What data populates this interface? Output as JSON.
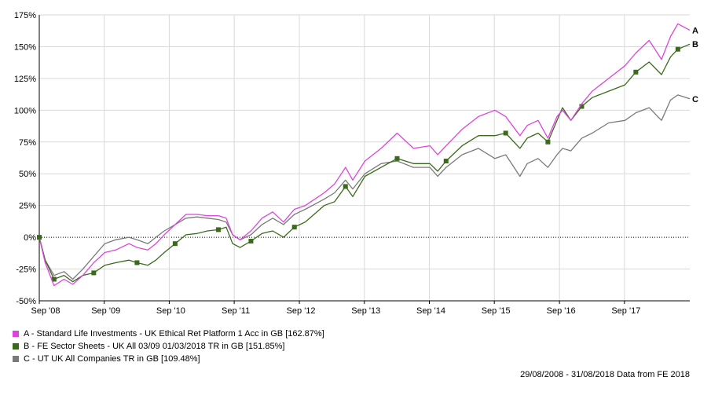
{
  "chart_data": {
    "type": "line",
    "x_ticks": [
      "Sep '08",
      "Sep '09",
      "Sep '10",
      "Sep '11",
      "Sep '12",
      "Sep '13",
      "Sep '14",
      "Sep '15",
      "Sep '16",
      "Sep '17"
    ],
    "y_ticks": [
      "175%",
      "150%",
      "125%",
      "100%",
      "75%",
      "50%",
      "25%",
      "0%",
      "-25%",
      "-50%"
    ],
    "ylim": [
      -50,
      175
    ],
    "xlim": [
      "2008-08-29",
      "2018-08-31"
    ],
    "grid": true,
    "zero_line": "dotted",
    "series": [
      {
        "label": "A",
        "name": "A - Standard Life Investments - UK Ethical Ret Platform 1 Acc in GB [162.87%]",
        "color": "#dd44dd",
        "points": [
          [
            "2008-08-29",
            0
          ],
          [
            "2008-10-01",
            -20
          ],
          [
            "2008-11-20",
            -38
          ],
          [
            "2009-01-15",
            -33
          ],
          [
            "2009-03-05",
            -37
          ],
          [
            "2009-05-01",
            -30
          ],
          [
            "2009-07-01",
            -20
          ],
          [
            "2009-09-01",
            -12
          ],
          [
            "2009-11-01",
            -10
          ],
          [
            "2010-01-15",
            -5
          ],
          [
            "2010-03-01",
            -8
          ],
          [
            "2010-05-01",
            -10
          ],
          [
            "2010-06-15",
            -5
          ],
          [
            "2010-08-01",
            2
          ],
          [
            "2010-10-01",
            10
          ],
          [
            "2010-12-01",
            18
          ],
          [
            "2011-02-01",
            18
          ],
          [
            "2011-04-01",
            17
          ],
          [
            "2011-06-01",
            17
          ],
          [
            "2011-07-15",
            15
          ],
          [
            "2011-08-20",
            2
          ],
          [
            "2011-10-01",
            -2
          ],
          [
            "2011-12-01",
            5
          ],
          [
            "2012-02-01",
            15
          ],
          [
            "2012-04-01",
            20
          ],
          [
            "2012-06-01",
            12
          ],
          [
            "2012-08-01",
            22
          ],
          [
            "2012-10-01",
            25
          ],
          [
            "2013-01-15",
            35
          ],
          [
            "2013-03-15",
            42
          ],
          [
            "2013-05-15",
            55
          ],
          [
            "2013-06-25",
            45
          ],
          [
            "2013-09-01",
            60
          ],
          [
            "2013-12-01",
            70
          ],
          [
            "2014-03-01",
            82
          ],
          [
            "2014-06-01",
            70
          ],
          [
            "2014-09-01",
            72
          ],
          [
            "2014-10-15",
            65
          ],
          [
            "2014-12-01",
            72
          ],
          [
            "2015-03-01",
            85
          ],
          [
            "2015-06-01",
            95
          ],
          [
            "2015-09-01",
            100
          ],
          [
            "2015-11-01",
            95
          ],
          [
            "2016-01-20",
            80
          ],
          [
            "2016-03-01",
            88
          ],
          [
            "2016-05-01",
            92
          ],
          [
            "2016-06-25",
            78
          ],
          [
            "2016-08-15",
            95
          ],
          [
            "2016-09-15",
            100
          ],
          [
            "2016-11-01",
            92
          ],
          [
            "2017-01-01",
            105
          ],
          [
            "2017-03-01",
            115
          ],
          [
            "2017-06-01",
            125
          ],
          [
            "2017-09-01",
            135
          ],
          [
            "2017-11-01",
            145
          ],
          [
            "2018-01-15",
            155
          ],
          [
            "2018-03-25",
            140
          ],
          [
            "2018-05-15",
            158
          ],
          [
            "2018-06-25",
            168
          ],
          [
            "2018-08-31",
            163
          ]
        ]
      },
      {
        "label": "B",
        "name": "B - FE Sector Sheets - UK All 03/09 01/03/2018 TR in GB [151.85%]",
        "color": "#3a6a1a",
        "points": [
          [
            "2008-08-29",
            0
          ],
          [
            "2008-10-01",
            -18
          ],
          [
            "2008-11-20",
            -33
          ],
          [
            "2009-01-15",
            -30
          ],
          [
            "2009-03-05",
            -35
          ],
          [
            "2009-05-01",
            -30
          ],
          [
            "2009-07-01",
            -28
          ],
          [
            "2009-09-01",
            -22
          ],
          [
            "2009-11-01",
            -20
          ],
          [
            "2010-01-15",
            -18
          ],
          [
            "2010-03-01",
            -20
          ],
          [
            "2010-05-01",
            -22
          ],
          [
            "2010-06-15",
            -18
          ],
          [
            "2010-08-01",
            -12
          ],
          [
            "2010-10-01",
            -5
          ],
          [
            "2010-12-01",
            2
          ],
          [
            "2011-02-01",
            3
          ],
          [
            "2011-04-01",
            5
          ],
          [
            "2011-06-01",
            6
          ],
          [
            "2011-07-15",
            8
          ],
          [
            "2011-08-20",
            -5
          ],
          [
            "2011-10-01",
            -8
          ],
          [
            "2011-12-01",
            -3
          ],
          [
            "2012-02-01",
            3
          ],
          [
            "2012-04-01",
            5
          ],
          [
            "2012-06-01",
            0
          ],
          [
            "2012-08-01",
            8
          ],
          [
            "2012-10-01",
            12
          ],
          [
            "2013-01-15",
            25
          ],
          [
            "2013-03-15",
            28
          ],
          [
            "2013-05-15",
            40
          ],
          [
            "2013-06-25",
            32
          ],
          [
            "2013-09-01",
            48
          ],
          [
            "2013-12-01",
            55
          ],
          [
            "2014-03-01",
            62
          ],
          [
            "2014-06-01",
            58
          ],
          [
            "2014-09-01",
            58
          ],
          [
            "2014-10-15",
            52
          ],
          [
            "2014-12-01",
            60
          ],
          [
            "2015-03-01",
            72
          ],
          [
            "2015-06-01",
            80
          ],
          [
            "2015-09-01",
            80
          ],
          [
            "2015-11-01",
            82
          ],
          [
            "2016-01-20",
            70
          ],
          [
            "2016-03-01",
            78
          ],
          [
            "2016-05-01",
            82
          ],
          [
            "2016-06-25",
            75
          ],
          [
            "2016-08-15",
            92
          ],
          [
            "2016-09-15",
            102
          ],
          [
            "2016-11-01",
            92
          ],
          [
            "2017-01-01",
            103
          ],
          [
            "2017-03-01",
            110
          ],
          [
            "2017-06-01",
            115
          ],
          [
            "2017-09-01",
            120
          ],
          [
            "2017-11-01",
            130
          ],
          [
            "2018-01-15",
            138
          ],
          [
            "2018-03-25",
            128
          ],
          [
            "2018-05-15",
            142
          ],
          [
            "2018-06-25",
            148
          ],
          [
            "2018-08-31",
            152
          ]
        ]
      },
      {
        "label": "C",
        "name": "C - UT UK All Companies TR in GB [109.48%]",
        "color": "#7a7a7a",
        "points": [
          [
            "2008-08-29",
            0
          ],
          [
            "2008-10-01",
            -18
          ],
          [
            "2008-11-20",
            -30
          ],
          [
            "2009-01-15",
            -27
          ],
          [
            "2009-03-05",
            -33
          ],
          [
            "2009-05-01",
            -25
          ],
          [
            "2009-07-01",
            -15
          ],
          [
            "2009-09-01",
            -5
          ],
          [
            "2009-11-01",
            -2
          ],
          [
            "2010-01-15",
            0
          ],
          [
            "2010-03-01",
            -2
          ],
          [
            "2010-05-01",
            -5
          ],
          [
            "2010-06-15",
            0
          ],
          [
            "2010-08-01",
            5
          ],
          [
            "2010-10-01",
            10
          ],
          [
            "2010-12-01",
            15
          ],
          [
            "2011-02-01",
            16
          ],
          [
            "2011-04-01",
            15
          ],
          [
            "2011-06-01",
            14
          ],
          [
            "2011-07-15",
            12
          ],
          [
            "2011-08-20",
            2
          ],
          [
            "2011-10-01",
            -2
          ],
          [
            "2011-12-01",
            2
          ],
          [
            "2012-02-01",
            10
          ],
          [
            "2012-04-01",
            15
          ],
          [
            "2012-06-01",
            10
          ],
          [
            "2012-08-01",
            18
          ],
          [
            "2012-10-01",
            22
          ],
          [
            "2013-01-15",
            30
          ],
          [
            "2013-03-15",
            35
          ],
          [
            "2013-05-15",
            45
          ],
          [
            "2013-06-25",
            38
          ],
          [
            "2013-09-01",
            50
          ],
          [
            "2013-12-01",
            58
          ],
          [
            "2014-03-01",
            60
          ],
          [
            "2014-06-01",
            55
          ],
          [
            "2014-09-01",
            55
          ],
          [
            "2014-10-15",
            48
          ],
          [
            "2014-12-01",
            55
          ],
          [
            "2015-03-01",
            65
          ],
          [
            "2015-06-01",
            70
          ],
          [
            "2015-09-01",
            62
          ],
          [
            "2015-11-01",
            65
          ],
          [
            "2016-01-20",
            48
          ],
          [
            "2016-03-01",
            58
          ],
          [
            "2016-05-01",
            62
          ],
          [
            "2016-06-25",
            55
          ],
          [
            "2016-08-15",
            65
          ],
          [
            "2016-09-15",
            70
          ],
          [
            "2016-11-01",
            68
          ],
          [
            "2017-01-01",
            78
          ],
          [
            "2017-03-01",
            82
          ],
          [
            "2017-06-01",
            90
          ],
          [
            "2017-09-01",
            92
          ],
          [
            "2017-11-01",
            98
          ],
          [
            "2018-01-15",
            102
          ],
          [
            "2018-03-25",
            92
          ],
          [
            "2018-05-15",
            108
          ],
          [
            "2018-06-25",
            112
          ],
          [
            "2018-08-31",
            109
          ]
        ]
      }
    ]
  },
  "legend": [
    {
      "text": "A - Standard Life Investments - UK Ethical Ret Platform 1 Acc in GB [162.87%]",
      "color": "#dd44dd"
    },
    {
      "text": "B - FE Sector Sheets - UK All 03/09 01/03/2018 TR in GB [151.85%]",
      "color": "#3a6a1a"
    },
    {
      "text": "C - UT UK All Companies TR in GB [109.48%]",
      "color": "#7a7a7a"
    }
  ],
  "footer": "29/08/2008 - 31/08/2018 Data from FE 2018"
}
